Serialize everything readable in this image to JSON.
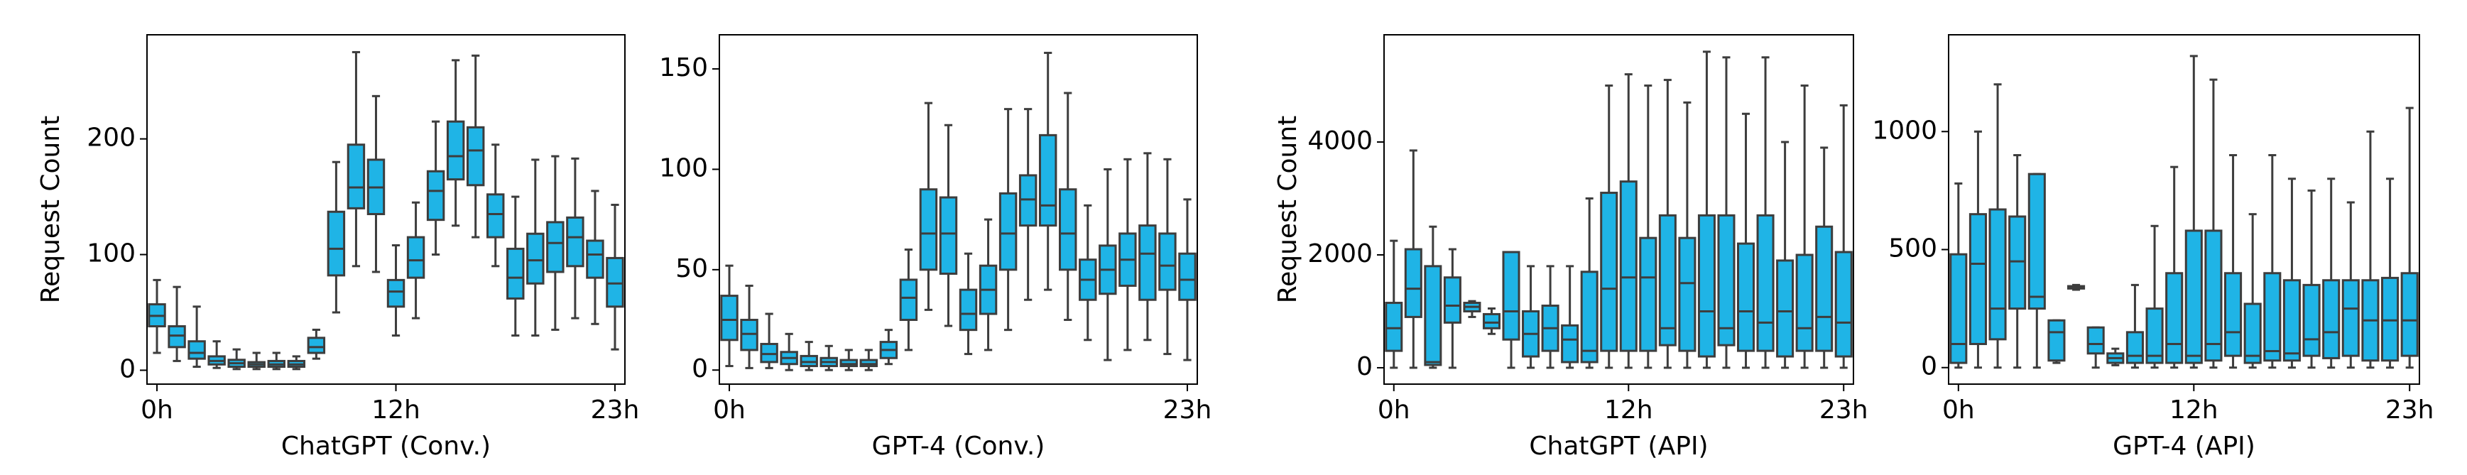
{
  "chart_data": [
    {
      "type": "box",
      "xlabel": "ChatGPT (Conv.)",
      "ylabel": "Request Count",
      "color": "#1fb4e6",
      "categories": [
        "0h",
        null,
        null,
        null,
        null,
        null,
        null,
        null,
        null,
        null,
        null,
        null,
        "12h",
        null,
        null,
        null,
        null,
        null,
        null,
        null,
        null,
        null,
        null,
        "23h"
      ],
      "low": [
        15,
        8,
        3,
        2,
        1,
        1,
        1,
        1,
        10,
        50,
        90,
        85,
        30,
        45,
        100,
        125,
        115,
        90,
        30,
        30,
        35,
        45,
        40,
        18
      ],
      "q1": [
        38,
        20,
        10,
        5,
        3,
        3,
        3,
        3,
        15,
        82,
        140,
        135,
        55,
        80,
        130,
        165,
        160,
        115,
        62,
        75,
        85,
        90,
        80,
        55
      ],
      "median": [
        47,
        30,
        15,
        8,
        6,
        5,
        5,
        5,
        20,
        105,
        158,
        158,
        68,
        95,
        155,
        185,
        190,
        135,
        80,
        95,
        110,
        115,
        100,
        75
      ],
      "q3": [
        57,
        38,
        25,
        12,
        9,
        7,
        8,
        8,
        28,
        137,
        195,
        182,
        78,
        115,
        172,
        215,
        210,
        152,
        105,
        118,
        128,
        132,
        112,
        97
      ],
      "high": [
        78,
        72,
        55,
        25,
        18,
        15,
        15,
        12,
        35,
        180,
        275,
        237,
        108,
        145,
        215,
        268,
        272,
        195,
        150,
        182,
        185,
        183,
        155,
        143
      ],
      "ylim": [
        -12,
        290
      ],
      "yticks": [
        0,
        100,
        200
      ]
    },
    {
      "type": "box",
      "xlabel": "GPT-4 (Conv.)",
      "color": "#1fb4e6",
      "categories": [
        "0h",
        null,
        null,
        null,
        null,
        null,
        null,
        null,
        null,
        null,
        null,
        null,
        null,
        null,
        null,
        null,
        null,
        null,
        null,
        null,
        null,
        null,
        null,
        "23h"
      ],
      "low": [
        2,
        1,
        1,
        0,
        0,
        0,
        0,
        0,
        3,
        10,
        30,
        22,
        8,
        10,
        20,
        35,
        40,
        25,
        15,
        5,
        10,
        15,
        8,
        5
      ],
      "q1": [
        15,
        10,
        4,
        3,
        2,
        2,
        2,
        2,
        6,
        25,
        50,
        48,
        20,
        28,
        50,
        72,
        72,
        50,
        35,
        38,
        42,
        35,
        40,
        35
      ],
      "median": [
        25,
        18,
        8,
        6,
        4,
        4,
        3,
        3,
        10,
        36,
        68,
        68,
        28,
        40,
        68,
        85,
        82,
        68,
        45,
        50,
        55,
        58,
        52,
        45
      ],
      "q3": [
        37,
        25,
        13,
        9,
        7,
        6,
        5,
        5,
        14,
        45,
        90,
        86,
        40,
        52,
        88,
        97,
        117,
        90,
        55,
        62,
        68,
        72,
        68,
        58
      ],
      "high": [
        52,
        42,
        28,
        18,
        14,
        12,
        10,
        10,
        20,
        60,
        133,
        122,
        58,
        75,
        130,
        130,
        158,
        138,
        82,
        100,
        105,
        108,
        105,
        85
      ],
      "ylim": [
        -7,
        167
      ],
      "yticks": [
        0,
        50,
        100,
        150
      ]
    },
    {
      "type": "box",
      "xlabel": "ChatGPT (API)",
      "ylabel": "Request Count",
      "color": "#1fb4e6",
      "categories": [
        "0h",
        null,
        null,
        null,
        null,
        null,
        null,
        null,
        null,
        null,
        null,
        null,
        "12h",
        null,
        null,
        null,
        null,
        null,
        null,
        null,
        null,
        null,
        null,
        "23h"
      ],
      "low": [
        0,
        0,
        0,
        0,
        900,
        600,
        0,
        0,
        0,
        0,
        0,
        0,
        0,
        0,
        0,
        0,
        0,
        0,
        0,
        0,
        0,
        0,
        0,
        0
      ],
      "q1": [
        300,
        900,
        50,
        800,
        1000,
        700,
        500,
        200,
        300,
        100,
        100,
        300,
        300,
        300,
        400,
        300,
        200,
        400,
        300,
        300,
        200,
        300,
        300,
        200
      ],
      "median": [
        700,
        1400,
        100,
        1100,
        1080,
        800,
        1000,
        600,
        700,
        500,
        300,
        1400,
        1600,
        1600,
        700,
        1500,
        1000,
        700,
        1000,
        800,
        1000,
        700,
        900,
        800
      ],
      "q3": [
        1150,
        2100,
        1800,
        1600,
        1150,
        950,
        2050,
        1000,
        1100,
        750,
        1700,
        3100,
        3300,
        2300,
        2700,
        2300,
        2700,
        2700,
        2200,
        2700,
        1900,
        2000,
        2500,
        2050
      ],
      "high": [
        2250,
        3850,
        2500,
        2100,
        1180,
        1050,
        2050,
        1800,
        1800,
        1800,
        3000,
        5000,
        5200,
        5000,
        5100,
        4700,
        5600,
        5500,
        4500,
        5500,
        4000,
        5000,
        3900,
        4650
      ],
      "ylim": [
        -290,
        5900
      ],
      "yticks": [
        0,
        2000,
        4000
      ]
    },
    {
      "type": "box",
      "xlabel": "GPT-4 (API)",
      "color": "#1fb4e6",
      "categories": [
        "0h",
        null,
        null,
        null,
        null,
        null,
        null,
        null,
        null,
        null,
        null,
        null,
        "12h",
        null,
        null,
        null,
        null,
        null,
        null,
        null,
        null,
        null,
        null,
        "23h"
      ],
      "low": [
        0,
        0,
        0,
        0,
        0,
        20,
        330,
        0,
        10,
        0,
        0,
        0,
        0,
        0,
        0,
        0,
        0,
        0,
        0,
        0,
        0,
        0,
        0,
        0
      ],
      "q1": [
        20,
        100,
        120,
        250,
        250,
        30,
        335,
        60,
        20,
        20,
        20,
        20,
        20,
        30,
        50,
        20,
        30,
        30,
        50,
        40,
        50,
        30,
        30,
        50
      ],
      "median": [
        100,
        440,
        250,
        450,
        300,
        150,
        340,
        100,
        40,
        50,
        50,
        100,
        50,
        100,
        150,
        50,
        70,
        60,
        120,
        150,
        250,
        200,
        200,
        200
      ],
      "q3": [
        480,
        650,
        670,
        640,
        820,
        200,
        345,
        170,
        60,
        150,
        250,
        400,
        580,
        580,
        400,
        270,
        400,
        370,
        350,
        370,
        370,
        370,
        380,
        400
      ],
      "high": [
        780,
        1000,
        1200,
        900,
        820,
        200,
        350,
        170,
        80,
        350,
        600,
        850,
        1320,
        1220,
        900,
        650,
        900,
        800,
        750,
        800,
        700,
        1000,
        800,
        1100
      ],
      "ylim": [
        -70,
        1410
      ],
      "yticks": [
        0,
        500,
        1000
      ]
    }
  ]
}
